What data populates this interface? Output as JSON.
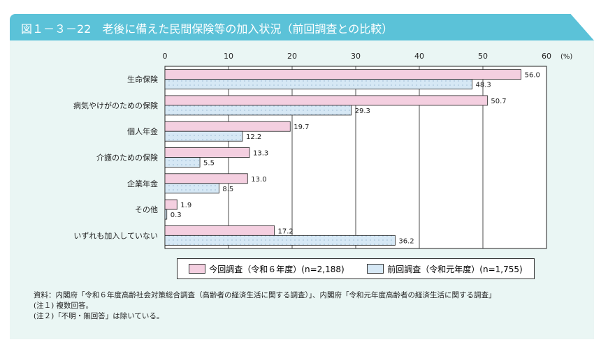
{
  "header": {
    "title": "図１－３－22　老後に備えた民間保険等の加入状況（前回調査との比較）"
  },
  "chart_data": {
    "type": "bar",
    "orientation": "horizontal",
    "categories": [
      "生命保険",
      "病気やけがのための保険",
      "個人年金",
      "介護のための保険",
      "企業年金",
      "その他",
      "いずれも加入していない"
    ],
    "series": [
      {
        "name": "今回調査（令和６年度）(n=2,188)",
        "color": "#f4cfe0",
        "values": [
          56.0,
          50.7,
          19.7,
          13.3,
          13.0,
          1.9,
          17.2
        ]
      },
      {
        "name": "前回調査（令和元年度）(n=1,755)",
        "color": "#d6e8f5",
        "values": [
          48.3,
          29.3,
          12.2,
          5.5,
          8.5,
          0.3,
          36.2
        ]
      }
    ],
    "xlim": [
      0,
      60
    ],
    "xticks": [
      "0",
      "10",
      "20",
      "30",
      "40",
      "50",
      "60"
    ],
    "unit": "(%)",
    "grid": true,
    "legend": "bottom"
  },
  "notes": [
    "資料：内閣府「令和６年度高齢社会対策総合調査（高齢者の経済生活に関する調査）」、内閣府「令和元年度高齢者の経済生活に関する調査」",
    "(注１) 複数回答。",
    "(注２)「不明・無回答」は除いている。"
  ]
}
